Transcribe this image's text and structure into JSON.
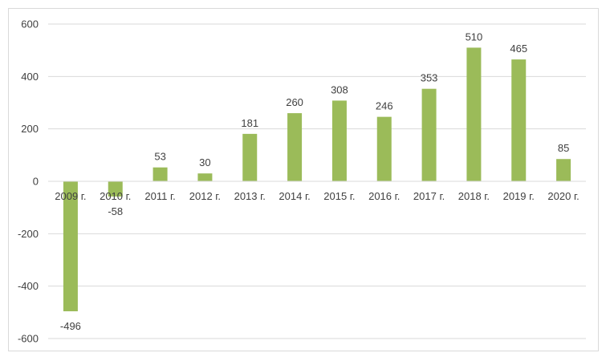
{
  "chart_data": {
    "type": "bar",
    "title": "",
    "xlabel": "",
    "ylabel": "",
    "categories": [
      "2009 г.",
      "2010 г.",
      "2011 г.",
      "2012 г.",
      "2013 г.",
      "2014 г.",
      "2015 г.",
      "2016 г.",
      "2017 г.",
      "2018 г.",
      "2019 г.",
      "2020 г."
    ],
    "values": [
      -496,
      -58,
      53,
      30,
      181,
      260,
      308,
      246,
      353,
      510,
      465,
      85
    ],
    "data_labels": [
      "-496",
      "-58",
      "53",
      "30",
      "181",
      "260",
      "308",
      "246",
      "353",
      "510",
      "465",
      "85"
    ],
    "ylim": [
      -600,
      600
    ],
    "yticks": [
      600,
      400,
      200,
      0,
      -200,
      -400,
      -600
    ],
    "ytick_labels": [
      "600",
      "400",
      "200",
      "0",
      "-200",
      "-400",
      "-600"
    ],
    "grid": true,
    "legend": "none",
    "bar_color": "#9bbb59",
    "grid_color": "#d9d9d9"
  }
}
